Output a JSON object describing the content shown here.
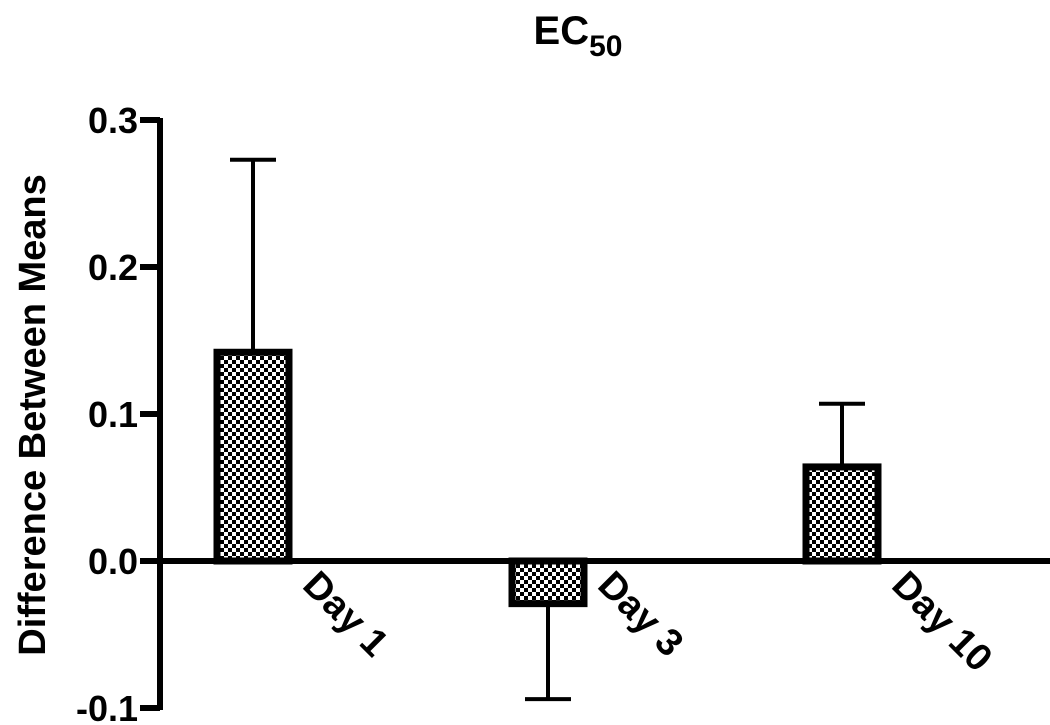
{
  "chart_data": {
    "type": "bar",
    "title": "EC",
    "title_subscript": "50",
    "xlabel": "",
    "ylabel": "Difference Between Means",
    "categories": [
      "Day 1",
      "Day 3",
      "Day 10"
    ],
    "values": [
      0.142,
      -0.029,
      0.064
    ],
    "error_bars": [
      {
        "direction": "up",
        "value": 0.131
      },
      {
        "direction": "down",
        "value": 0.065
      },
      {
        "direction": "up",
        "value": 0.043
      }
    ],
    "ylim": [
      -0.1,
      0.3
    ],
    "yticks": [
      -0.1,
      0.0,
      0.1,
      0.2,
      0.3
    ],
    "ytick_labels": [
      "-0.1",
      "0.0",
      "0.1",
      "0.2",
      "0.3"
    ],
    "bar_fill": "checkered",
    "colors": {
      "bar_dark": "#000000",
      "bar_light": "#ffffff",
      "axis": "#000000"
    },
    "grid": false,
    "legend": "none"
  }
}
